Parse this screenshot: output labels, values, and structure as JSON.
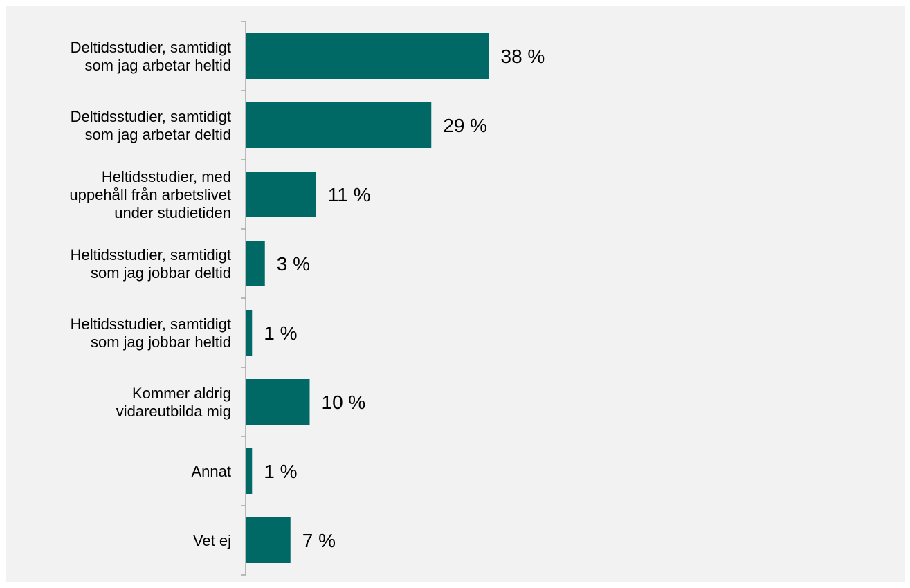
{
  "chart_data": {
    "type": "bar",
    "orientation": "horizontal",
    "categories": [
      [
        "Deltidsstudier, samtidigt",
        "som jag arbetar heltid"
      ],
      [
        "Deltidsstudier, samtidigt",
        "som jag arbetar deltid"
      ],
      [
        "Heltidsstudier, med",
        "uppehåll från arbetslivet",
        "under studietiden"
      ],
      [
        "Heltidsstudier, samtidigt",
        "som jag jobbar deltid"
      ],
      [
        "Heltidsstudier, samtidigt",
        "som jag jobbar heltid"
      ],
      [
        "Kommer aldrig",
        "vidareutbilda mig"
      ],
      [
        "Annat"
      ],
      [
        "Vet ej"
      ]
    ],
    "values": [
      38,
      29,
      11,
      3,
      1,
      10,
      1,
      7
    ],
    "value_labels": [
      "38 %",
      "29 %",
      "11 %",
      "3 %",
      "1 %",
      "10 %",
      "1 %",
      "7 %"
    ],
    "xlim": [
      0,
      100
    ],
    "grid": false,
    "colors": {
      "bar": "#006966",
      "background": "#f2f2f2",
      "axis": "#a6a6a6"
    }
  }
}
